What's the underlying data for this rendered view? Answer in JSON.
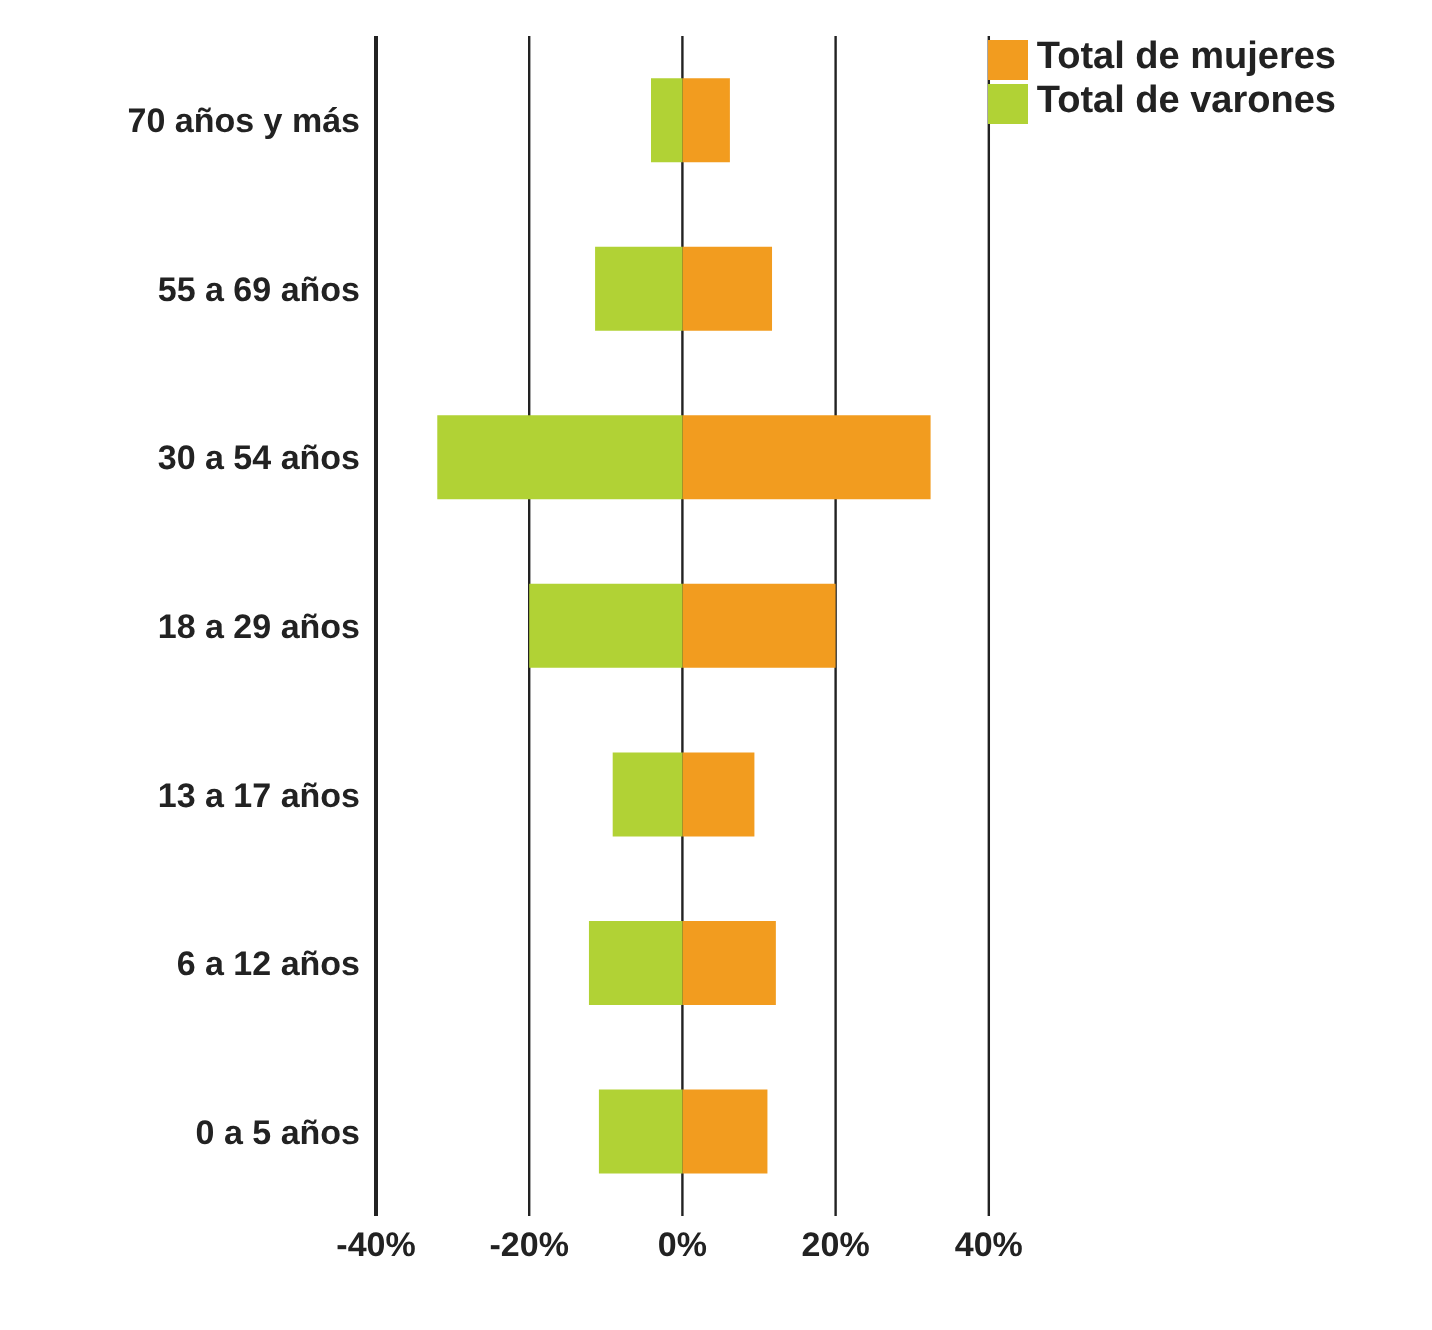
{
  "chart_data": {
    "type": "bar",
    "orientation": "horizontal",
    "stacked": true,
    "categories": [
      "70 años y más",
      "55 a 69 años",
      "30 a 54 años",
      "18 a 29 años",
      "13 a 17 años",
      "6 a 12 años",
      "0 a 5 años"
    ],
    "series": [
      {
        "name": "Total de mujeres",
        "color": "#f29c1f",
        "values": [
          6.2,
          11.7,
          32.4,
          20.0,
          9.4,
          12.2,
          11.1
        ]
      },
      {
        "name": "Total de varones",
        "color": "#b1d235",
        "values": [
          -4.1,
          -11.4,
          -32.0,
          -20.0,
          -9.1,
          -12.2,
          -10.9
        ]
      }
    ],
    "xlim": [
      -40,
      40
    ],
    "xticks": [
      {
        "value": -40,
        "label": "-40%"
      },
      {
        "value": -20,
        "label": "-20%"
      },
      {
        "value": 0,
        "label": "0%"
      },
      {
        "value": 20,
        "label": "20%"
      },
      {
        "value": 40,
        "label": "40%"
      }
    ],
    "grid": "x",
    "legend": "top right"
  }
}
